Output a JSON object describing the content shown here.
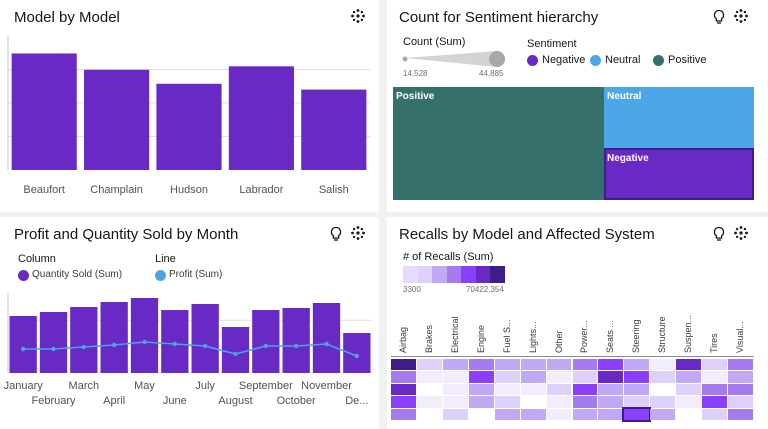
{
  "colors": {
    "purple": "#6929c4",
    "blue": "#4da6e5",
    "teal": "#36706b",
    "line_blue": "#4ca3e0"
  },
  "icons": {
    "settings": "gear-icon",
    "insight": "lightbulb-icon"
  },
  "panel_model": {
    "title": "Model by Model",
    "chart_data": {
      "type": "bar",
      "categories": [
        "Beaufort",
        "Champlain",
        "Hudson",
        "Labrador",
        "Salish"
      ],
      "values": [
        100,
        86,
        74,
        89,
        69
      ],
      "ylim": [
        0,
        115
      ],
      "grid": true
    }
  },
  "panel_sentiment": {
    "title": "Count for Sentiment hierarchy",
    "size_legend": {
      "label": "Count (Sum)",
      "min": "14,528",
      "max": "44,885"
    },
    "color_legend": {
      "label": "Sentiment",
      "items": [
        {
          "name": "Negative",
          "color": "#6929c4"
        },
        {
          "name": "Neutral",
          "color": "#4da6e5"
        },
        {
          "name": "Positive",
          "color": "#36706b"
        }
      ]
    },
    "chart_data": {
      "type": "treemap",
      "nodes": [
        {
          "label": "Positive",
          "value": 44885,
          "color": "#36706b"
        },
        {
          "label": "Neutral",
          "value": 14900,
          "color": "#4da6e5"
        },
        {
          "label": "Negative",
          "value": 14528,
          "color": "#6929c4"
        }
      ]
    }
  },
  "panel_profit": {
    "title": "Profit and Quantity Sold by Month",
    "legend_column": {
      "header": "Column",
      "item": "Quantity Sold (Sum)"
    },
    "legend_line": {
      "header": "Line",
      "item": "Profit (Sum)"
    },
    "chart_data": {
      "type": "bar",
      "categories": [
        "January",
        "February",
        "March",
        "April",
        "May",
        "June",
        "July",
        "August",
        "September",
        "October",
        "November",
        "December"
      ],
      "tick_labels": [
        "January",
        "February",
        "March",
        "April",
        "May",
        "June",
        "July",
        "August",
        "September",
        "October",
        "November",
        "De..."
      ],
      "series": [
        {
          "name": "Quantity Sold (Sum)",
          "type": "bar",
          "values": [
            57,
            61,
            66,
            71,
            75,
            63,
            69,
            46,
            63,
            65,
            70,
            40
          ]
        },
        {
          "name": "Profit (Sum)",
          "type": "line",
          "values": [
            24,
            24,
            26,
            28,
            31,
            29,
            27,
            19,
            27,
            27,
            29,
            17
          ]
        }
      ],
      "ylim": [
        0,
        80
      ],
      "grid": true
    }
  },
  "panel_recalls": {
    "title": "Recalls by Model and Affected System",
    "color_legend": {
      "label": "# of Recalls (Sum)",
      "min": "3300",
      "max": "70422.354"
    },
    "chart_data": {
      "type": "heatmap",
      "columns": [
        "Airbag",
        "Brakes",
        "Electrical",
        "Engine",
        "Fuel S...",
        "Lights...",
        "Other",
        "Power...",
        "Seats ...",
        "Steering",
        "Structure",
        "Suspen...",
        "Tires",
        "Visual..."
      ],
      "rows": 5,
      "levels": [
        [
          7,
          2,
          3,
          4,
          3,
          3,
          3,
          4,
          5,
          3,
          1,
          6,
          2,
          4
        ],
        [
          4,
          1,
          1,
          5,
          2,
          3,
          1,
          2,
          6,
          5,
          2,
          3,
          1,
          3
        ],
        [
          6,
          0,
          1,
          3,
          1,
          1,
          2,
          5,
          3,
          3,
          0,
          2,
          4,
          4
        ],
        [
          5,
          1,
          1,
          3,
          2,
          0,
          1,
          4,
          3,
          2,
          2,
          1,
          5,
          2
        ],
        [
          4,
          0,
          2,
          0,
          3,
          3,
          1,
          3,
          3,
          5,
          3,
          0,
          2,
          4
        ]
      ],
      "palette": [
        "#ffffff",
        "#f2ecfd",
        "#ddd0fa",
        "#c2a9f5",
        "#a57bf0",
        "#8a3ffc",
        "#6929c4",
        "#3e1c8a"
      ]
    }
  }
}
